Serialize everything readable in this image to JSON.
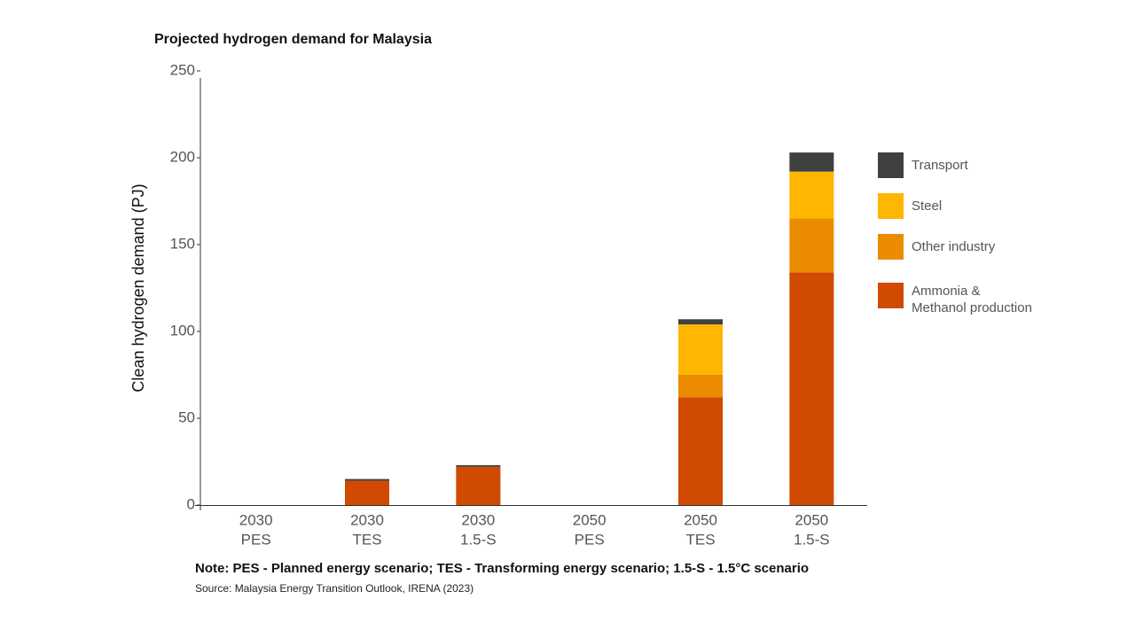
{
  "chart_data": {
    "type": "stacked_bar",
    "title": "Projected hydrogen demand for Malaysia",
    "y_label": "Clean hydrogen demand (PJ)",
    "categories": [
      [
        "2030",
        "PES"
      ],
      [
        "2030",
        "TES"
      ],
      [
        "2030",
        "1.5-S"
      ],
      [
        "2050",
        "PES"
      ],
      [
        "2050",
        "TES"
      ],
      [
        "2050",
        "1.5-S"
      ]
    ],
    "series": [
      {
        "name": "Ammonia &\nMethanol production",
        "color": "#d04a02",
        "values": [
          0,
          14,
          22,
          0,
          62,
          134
        ]
      },
      {
        "name": "Other industry",
        "color": "#eb8c00",
        "values": [
          0,
          0,
          0,
          0,
          13,
          31
        ]
      },
      {
        "name": "Steel",
        "color": "#ffb600",
        "values": [
          0,
          0,
          0,
          0,
          29,
          27
        ]
      },
      {
        "name": "Transport",
        "color": "#404040",
        "values": [
          0,
          1,
          1,
          0,
          3,
          11
        ]
      }
    ],
    "ylim": [
      0,
      250
    ],
    "yticks": [
      0,
      50,
      100,
      150,
      200,
      250
    ],
    "note": "Note: PES - Planned energy scenario; TES - Transforming energy scenario; 1.5-S - 1.5°C scenario",
    "source": "Source: Malaysia Energy Transition Outlook, IRENA (2023)"
  }
}
